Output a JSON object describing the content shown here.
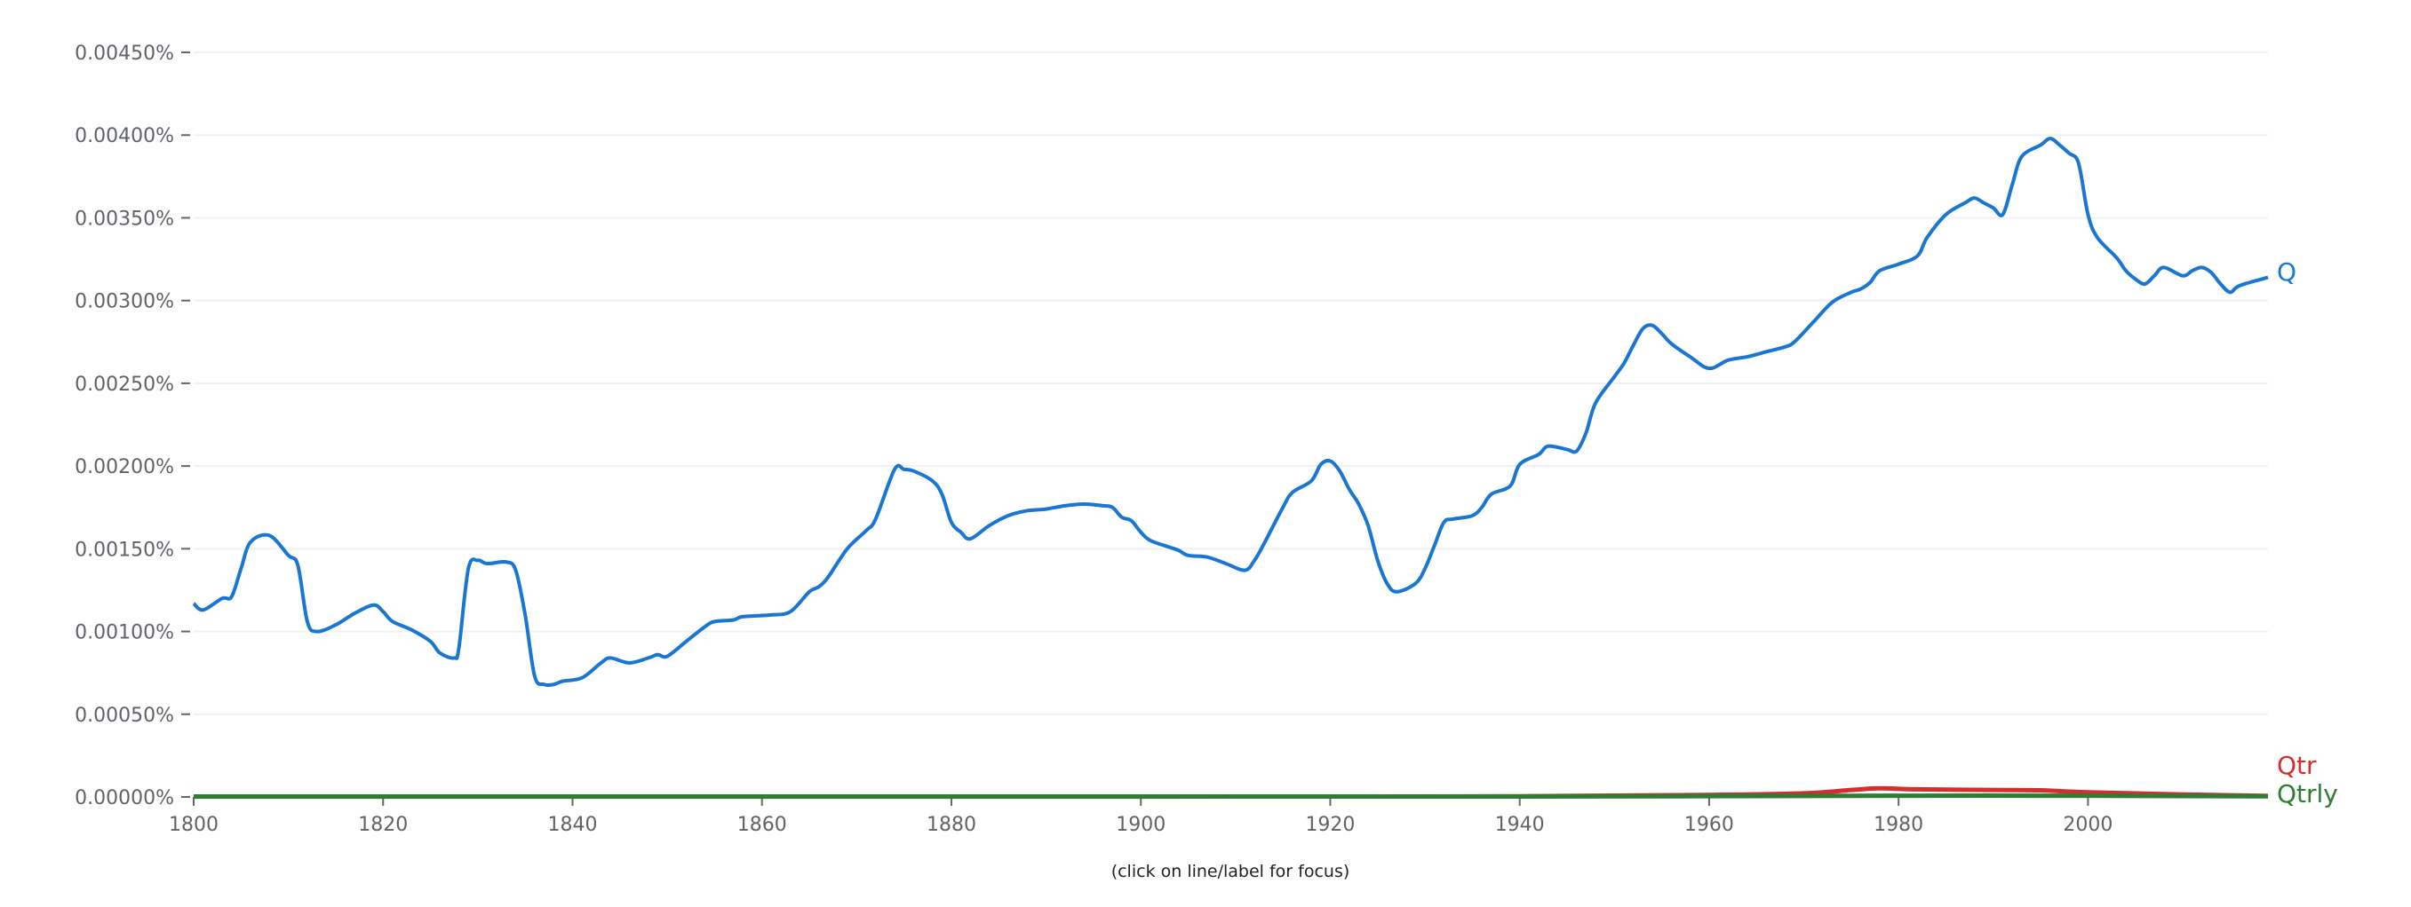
{
  "chart_data": {
    "type": "line",
    "title": "",
    "xlabel": "",
    "ylabel": "",
    "xlim": [
      1800,
      2019
    ],
    "ylim": [
      0,
      0.0045
    ],
    "grid": true,
    "x_ticks": [
      "1800",
      "1820",
      "1840",
      "1860",
      "1880",
      "1900",
      "1920",
      "1940",
      "1960",
      "1980",
      "2000"
    ],
    "y_ticks": [
      "0.00000%",
      "0.00050%",
      "0.00100%",
      "0.00150%",
      "0.00200%",
      "0.00250%",
      "0.00300%",
      "0.00350%",
      "0.00400%",
      "0.00450%"
    ],
    "legend": "inline labels at right end",
    "series": [
      {
        "name": "Q",
        "color": "#1976d2",
        "points": [
          [
            1800,
            0.00117
          ],
          [
            1801,
            0.00113
          ],
          [
            1803,
            0.0012
          ],
          [
            1804,
            0.00121
          ],
          [
            1805,
            0.00138
          ],
          [
            1806,
            0.00154
          ],
          [
            1808,
            0.00158
          ],
          [
            1810,
            0.00146
          ],
          [
            1811,
            0.0014
          ],
          [
            1812,
            0.00106
          ],
          [
            1813,
            0.001
          ],
          [
            1815,
            0.00104
          ],
          [
            1817,
            0.00111
          ],
          [
            1819,
            0.00116
          ],
          [
            1820,
            0.00112
          ],
          [
            1821,
            0.00106
          ],
          [
            1823,
            0.00101
          ],
          [
            1825,
            0.00094
          ],
          [
            1826,
            0.00087
          ],
          [
            1827.5,
            0.00084
          ],
          [
            1828,
            0.0009
          ],
          [
            1829,
            0.00138
          ],
          [
            1830,
            0.00143
          ],
          [
            1831,
            0.00141
          ],
          [
            1833,
            0.00142
          ],
          [
            1834,
            0.00137
          ],
          [
            1835,
            0.0011
          ],
          [
            1836,
            0.00073
          ],
          [
            1837,
            0.00068
          ],
          [
            1838,
            0.00068
          ],
          [
            1839,
            0.0007
          ],
          [
            1841,
            0.00072
          ],
          [
            1843,
            0.00081
          ],
          [
            1844,
            0.00084
          ],
          [
            1846,
            0.00081
          ],
          [
            1848,
            0.00084
          ],
          [
            1849,
            0.00086
          ],
          [
            1850,
            0.00085
          ],
          [
            1852,
            0.00094
          ],
          [
            1854,
            0.00103
          ],
          [
            1855,
            0.00106
          ],
          [
            1857,
            0.00107
          ],
          [
            1858,
            0.00109
          ],
          [
            1861,
            0.0011
          ],
          [
            1863,
            0.00112
          ],
          [
            1865,
            0.00124
          ],
          [
            1866,
            0.00127
          ],
          [
            1867,
            0.00133
          ],
          [
            1869,
            0.0015
          ],
          [
            1871,
            0.00161
          ],
          [
            1872,
            0.00168
          ],
          [
            1874,
            0.00198
          ],
          [
            1875,
            0.00198
          ],
          [
            1876,
            0.00197
          ],
          [
            1878,
            0.00191
          ],
          [
            1879,
            0.00183
          ],
          [
            1880,
            0.00166
          ],
          [
            1881,
            0.0016
          ],
          [
            1882,
            0.00156
          ],
          [
            1884,
            0.00164
          ],
          [
            1886,
            0.0017
          ],
          [
            1888,
            0.00173
          ],
          [
            1890,
            0.00174
          ],
          [
            1892,
            0.00176
          ],
          [
            1894,
            0.00177
          ],
          [
            1896,
            0.00176
          ],
          [
            1897,
            0.00175
          ],
          [
            1898,
            0.00169
          ],
          [
            1899,
            0.00167
          ],
          [
            1900,
            0.0016
          ],
          [
            1901,
            0.00155
          ],
          [
            1903,
            0.00151
          ],
          [
            1904,
            0.00149
          ],
          [
            1905,
            0.00146
          ],
          [
            1907,
            0.00145
          ],
          [
            1909,
            0.00141
          ],
          [
            1911,
            0.00137
          ],
          [
            1912,
            0.00143
          ],
          [
            1913,
            0.00153
          ],
          [
            1915,
            0.00175
          ],
          [
            1916,
            0.00184
          ],
          [
            1918,
            0.00191
          ],
          [
            1919,
            0.00201
          ],
          [
            1920,
            0.00203
          ],
          [
            1921,
            0.00197
          ],
          [
            1922,
            0.00186
          ],
          [
            1923,
            0.00177
          ],
          [
            1924,
            0.00164
          ],
          [
            1925,
            0.00143
          ],
          [
            1926,
            0.00129
          ],
          [
            1927,
            0.00124
          ],
          [
            1929,
            0.00129
          ],
          [
            1930,
            0.00138
          ],
          [
            1931,
            0.00152
          ],
          [
            1932,
            0.00166
          ],
          [
            1933,
            0.00168
          ],
          [
            1935,
            0.0017
          ],
          [
            1936,
            0.00175
          ],
          [
            1937,
            0.00183
          ],
          [
            1939,
            0.00188
          ],
          [
            1940,
            0.00201
          ],
          [
            1942,
            0.00207
          ],
          [
            1943,
            0.00212
          ],
          [
            1945,
            0.0021
          ],
          [
            1946,
            0.00209
          ],
          [
            1947,
            0.0022
          ],
          [
            1948,
            0.00238
          ],
          [
            1950,
            0.00254
          ],
          [
            1951,
            0.00262
          ],
          [
            1952,
            0.00273
          ],
          [
            1953,
            0.00283
          ],
          [
            1954,
            0.00285
          ],
          [
            1955,
            0.0028
          ],
          [
            1956,
            0.00274
          ],
          [
            1958,
            0.00266
          ],
          [
            1960,
            0.00259
          ],
          [
            1962,
            0.00264
          ],
          [
            1964,
            0.00266
          ],
          [
            1966,
            0.00269
          ],
          [
            1968,
            0.00272
          ],
          [
            1969,
            0.00275
          ],
          [
            1971,
            0.00287
          ],
          [
            1973,
            0.00299
          ],
          [
            1975,
            0.00305
          ],
          [
            1976,
            0.00307
          ],
          [
            1977,
            0.00311
          ],
          [
            1978,
            0.00318
          ],
          [
            1980,
            0.00322
          ],
          [
            1982,
            0.00327
          ],
          [
            1983,
            0.00338
          ],
          [
            1985,
            0.00352
          ],
          [
            1987,
            0.00359
          ],
          [
            1988,
            0.00362
          ],
          [
            1989,
            0.00359
          ],
          [
            1990,
            0.00356
          ],
          [
            1991,
            0.00352
          ],
          [
            1992,
            0.0037
          ],
          [
            1993,
            0.00387
          ],
          [
            1995,
            0.00394
          ],
          [
            1996,
            0.00398
          ],
          [
            1997,
            0.00394
          ],
          [
            1998,
            0.00389
          ],
          [
            1999,
            0.00383
          ],
          [
            2000,
            0.00352
          ],
          [
            2001,
            0.00338
          ],
          [
            2003,
            0.00326
          ],
          [
            2004,
            0.00318
          ],
          [
            2005,
            0.00313
          ],
          [
            2006,
            0.0031
          ],
          [
            2007,
            0.00315
          ],
          [
            2008,
            0.0032
          ],
          [
            2010,
            0.00315
          ],
          [
            2011,
            0.00318
          ],
          [
            2012,
            0.0032
          ],
          [
            2013,
            0.00317
          ],
          [
            2014,
            0.0031
          ],
          [
            2015,
            0.00305
          ],
          [
            2016,
            0.00309
          ],
          [
            2019,
            0.00314
          ]
        ]
      },
      {
        "name": "Qtr",
        "color": "#d32f2f",
        "points": [
          [
            1800,
            2e-06
          ],
          [
            1900,
            2e-06
          ],
          [
            1940,
            4e-06
          ],
          [
            1960,
            1.2e-05
          ],
          [
            1970,
            2.2e-05
          ],
          [
            1975,
            4.2e-05
          ],
          [
            1978,
            5.2e-05
          ],
          [
            1982,
            4.6e-05
          ],
          [
            1990,
            4.2e-05
          ],
          [
            1995,
            4e-05
          ],
          [
            2000,
            2.8e-05
          ],
          [
            2010,
            1.5e-05
          ],
          [
            2019,
            6e-06
          ]
        ]
      },
      {
        "name": "Qtrly",
        "color": "#2e7d32",
        "points": [
          [
            1800,
            3e-06
          ],
          [
            1940,
            3e-06
          ],
          [
            1960,
            5e-06
          ],
          [
            1990,
            8e-06
          ],
          [
            2019,
            4e-06
          ]
        ]
      }
    ]
  },
  "footer": "(click on line/label for focus)"
}
